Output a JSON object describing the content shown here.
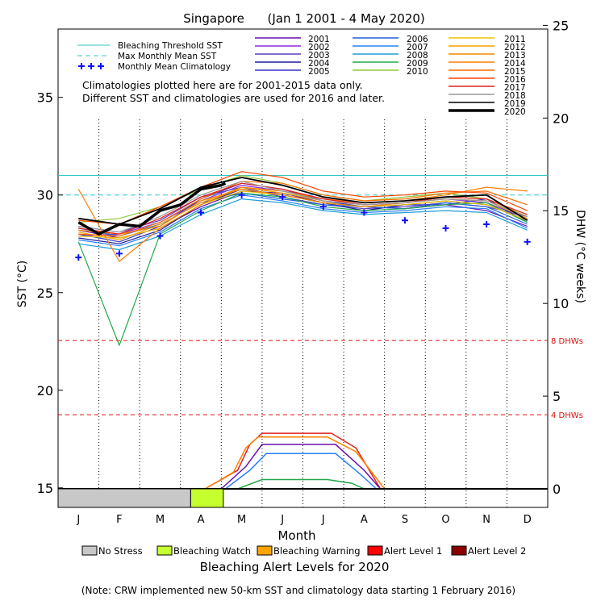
{
  "chart_data": {
    "type": "line",
    "title": "Singapore      (Jan 1 2001 - 4 May 2020)",
    "xlabel": "Month",
    "ylabel_left": "SST (°C)",
    "ylabel_right": "DHW (°C weeks)",
    "ylim_left": [
      14,
      38.5
    ],
    "ylim_right": [
      -1.0,
      24.8
    ],
    "yticks_left": [
      "15",
      "20",
      "25",
      "30",
      "35"
    ],
    "yticks_right": [
      "0",
      "5",
      "10",
      "15",
      "20",
      "25"
    ],
    "months": [
      "J",
      "F",
      "M",
      "A",
      "M",
      "J",
      "J",
      "A",
      "S",
      "O",
      "N",
      "D"
    ],
    "bleaching_threshold_sst": 31.0,
    "max_monthly_mean_sst": 30.0,
    "dhw_threshold_lines": [
      {
        "value": 8,
        "label": "8 DHWs"
      },
      {
        "value": 4,
        "label": "4 DHWs"
      }
    ],
    "monthly_mean_climatology": [
      {
        "month": 1,
        "sst": 26.8
      },
      {
        "month": 2,
        "sst": 27.0
      },
      {
        "month": 3,
        "sst": 27.9
      },
      {
        "month": 4,
        "sst": 29.1
      },
      {
        "month": 5,
        "sst": 30.0
      },
      {
        "month": 6,
        "sst": 29.9
      },
      {
        "month": 7,
        "sst": 29.4
      },
      {
        "month": 8,
        "sst": 29.1
      },
      {
        "month": 9,
        "sst": 28.7
      },
      {
        "month": 10,
        "sst": 28.3
      },
      {
        "month": 11,
        "sst": 28.5
      },
      {
        "month": 12,
        "sst": 27.6
      }
    ],
    "series": [
      {
        "name": "2001",
        "color": "#6a0dad",
        "month": [
          1,
          2,
          3,
          4,
          5,
          6,
          7,
          8,
          9,
          10,
          11,
          12
        ],
        "sst": [
          28.2,
          27.8,
          28.3,
          29.4,
          30.2,
          30.1,
          29.6,
          29.4,
          29.3,
          29.5,
          29.2,
          28.4
        ]
      },
      {
        "name": "2002",
        "color": "#8a2be2",
        "month": [
          1,
          2,
          3,
          4,
          5,
          6,
          7,
          8,
          9,
          10,
          11,
          12
        ],
        "sst": [
          27.9,
          28.0,
          28.6,
          29.7,
          30.5,
          30.2,
          29.8,
          29.5,
          29.6,
          29.8,
          29.6,
          28.8
        ]
      },
      {
        "name": "2003",
        "color": "#5b3fbf",
        "month": [
          1,
          2,
          3,
          4,
          5,
          6,
          7,
          8,
          9,
          10,
          11,
          12
        ],
        "sst": [
          28.4,
          28.1,
          28.7,
          29.9,
          30.4,
          29.9,
          29.5,
          29.3,
          29.4,
          29.6,
          29.4,
          28.9
        ]
      },
      {
        "name": "2004",
        "color": "#1c1c9e",
        "month": [
          1,
          2,
          3,
          4,
          5,
          6,
          7,
          8,
          9,
          10,
          11,
          12
        ],
        "sst": [
          27.8,
          27.5,
          28.2,
          29.5,
          30.3,
          30.0,
          29.6,
          29.2,
          29.5,
          29.7,
          29.5,
          28.7
        ]
      },
      {
        "name": "2005",
        "color": "#3333cc",
        "month": [
          1,
          2,
          3,
          4,
          5,
          6,
          7,
          8,
          9,
          10,
          11,
          12
        ],
        "sst": [
          28.0,
          27.6,
          28.4,
          29.8,
          30.6,
          30.3,
          29.7,
          29.4,
          29.5,
          29.5,
          29.8,
          28.6
        ]
      },
      {
        "name": "2006",
        "color": "#1f5fd6",
        "month": [
          1,
          2,
          3,
          4,
          5,
          6,
          7,
          8,
          9,
          10,
          11,
          12
        ],
        "sst": [
          28.3,
          27.9,
          28.5,
          29.6,
          30.1,
          29.8,
          29.5,
          29.4,
          29.3,
          29.6,
          29.4,
          28.5
        ]
      },
      {
        "name": "2007",
        "color": "#2a7fff",
        "month": [
          1,
          2,
          3,
          4,
          5,
          6,
          7,
          8,
          9,
          10,
          11,
          12
        ],
        "sst": [
          27.7,
          27.4,
          28.1,
          29.3,
          30.0,
          29.7,
          29.3,
          29.1,
          29.2,
          29.4,
          29.3,
          28.3
        ]
      },
      {
        "name": "2008",
        "color": "#1e9ed6",
        "month": [
          1,
          2,
          3,
          4,
          5,
          6,
          7,
          8,
          9,
          10,
          11,
          12
        ],
        "sst": [
          27.5,
          27.2,
          27.9,
          29.0,
          29.8,
          29.6,
          29.2,
          29.0,
          29.1,
          29.2,
          29.1,
          28.2
        ]
      },
      {
        "name": "2009",
        "color": "#22a84a",
        "month": [
          1,
          2,
          3,
          4,
          5,
          6,
          7,
          8,
          9,
          10,
          11,
          12
        ],
        "sst": [
          27.6,
          22.3,
          28.0,
          29.2,
          30.1,
          29.9,
          29.4,
          29.2,
          29.3,
          29.5,
          29.6,
          28.6
        ]
      },
      {
        "name": "2010",
        "color": "#8fc93a",
        "month": [
          1,
          2,
          3,
          4,
          5,
          6,
          7,
          8,
          9,
          10,
          11,
          12
        ],
        "sst": [
          28.6,
          28.8,
          29.4,
          30.3,
          31.0,
          30.6,
          30.0,
          29.7,
          29.9,
          30.1,
          29.8,
          29.0
        ]
      },
      {
        "name": "2011",
        "color": "#f2c200",
        "month": [
          1,
          2,
          3,
          4,
          5,
          6,
          7,
          8,
          9,
          10,
          11,
          12
        ],
        "sst": [
          27.9,
          27.8,
          28.3,
          29.5,
          30.2,
          30.0,
          29.6,
          29.4,
          29.5,
          29.7,
          29.5,
          28.7
        ]
      },
      {
        "name": "2012",
        "color": "#f2a200",
        "month": [
          1,
          2,
          3,
          4,
          5,
          6,
          7,
          8,
          9,
          10,
          11,
          12
        ],
        "sst": [
          28.1,
          27.7,
          28.5,
          29.6,
          30.4,
          30.1,
          29.7,
          29.5,
          29.6,
          29.8,
          29.7,
          28.8
        ]
      },
      {
        "name": "2013",
        "color": "#f08a00",
        "month": [
          1,
          2,
          3,
          4,
          5,
          6,
          7,
          8,
          9,
          10,
          11,
          12
        ],
        "sst": [
          28.2,
          28.0,
          28.4,
          29.7,
          30.3,
          30.0,
          29.6,
          29.4,
          29.6,
          29.9,
          29.8,
          28.9
        ]
      },
      {
        "name": "2014",
        "color": "#ff7f00",
        "month": [
          1,
          2,
          3,
          4,
          5,
          6,
          7,
          8,
          9,
          10,
          11,
          12
        ],
        "sst": [
          30.3,
          26.6,
          28.3,
          29.5,
          30.4,
          30.2,
          29.8,
          29.6,
          29.7,
          30.0,
          30.4,
          30.2
        ]
      },
      {
        "name": "2015",
        "color": "#ff6a00",
        "month": [
          1,
          2,
          3,
          4,
          5,
          6,
          7,
          8,
          9,
          10,
          11,
          12
        ],
        "sst": [
          28.0,
          27.9,
          28.6,
          29.8,
          30.7,
          30.6,
          30.0,
          29.7,
          29.8,
          30.1,
          30.2,
          29.5
        ]
      },
      {
        "name": "2016",
        "color": "#ff4500",
        "month": [
          1,
          2,
          3,
          4,
          5,
          6,
          7,
          8,
          9,
          10,
          11,
          12
        ],
        "sst": [
          28.7,
          28.5,
          29.4,
          30.4,
          31.2,
          30.9,
          30.2,
          29.9,
          30.0,
          30.2,
          30.1,
          29.2
        ]
      },
      {
        "name": "2017",
        "color": "#e02020",
        "month": [
          1,
          2,
          3,
          4,
          5,
          6,
          7,
          8,
          9,
          10,
          11,
          12
        ],
        "sst": [
          28.3,
          28.0,
          28.8,
          29.9,
          30.6,
          30.3,
          29.8,
          29.5,
          29.6,
          29.9,
          29.8,
          29.0
        ]
      },
      {
        "name": "2018",
        "color": "#999999",
        "month": [
          1,
          2,
          3,
          4,
          5,
          6,
          7,
          8,
          9,
          10,
          11,
          12
        ],
        "sst": [
          28.4,
          28.1,
          28.9,
          30.0,
          30.7,
          30.2,
          29.7,
          29.5,
          29.6,
          29.8,
          29.7,
          28.9
        ]
      },
      {
        "name": "2019",
        "color": "#000000",
        "month": [
          1,
          2,
          3,
          4,
          5,
          6,
          7,
          8,
          9,
          10,
          11,
          12
        ],
        "sst": [
          28.8,
          28.5,
          29.3,
          30.4,
          30.9,
          30.5,
          29.9,
          29.6,
          29.7,
          29.9,
          30.0,
          28.7
        ]
      },
      {
        "name": "2020",
        "color": "#000000",
        "month": [
          1,
          1.5,
          2,
          2.5,
          3,
          3.5,
          4,
          4.5,
          4.6
        ],
        "sst": [
          28.6,
          28.0,
          28.5,
          28.4,
          29.2,
          29.5,
          30.3,
          30.5,
          30.6
        ]
      }
    ],
    "dhw_series": [
      {
        "color": "#e02020",
        "month": [
          4.1,
          4.9,
          5.2,
          5.5,
          7.2,
          7.8,
          8.4
        ],
        "dhw": [
          0,
          1.0,
          2.4,
          3.0,
          3.0,
          2.2,
          0
        ]
      },
      {
        "color": "#ff7f00",
        "month": [
          4.1,
          4.8,
          5.1,
          5.4,
          7.1,
          7.8,
          8.5
        ],
        "dhw": [
          0,
          0.9,
          2.2,
          2.8,
          2.8,
          2.0,
          0
        ]
      },
      {
        "color": "#6a0dad",
        "month": [
          4.5,
          5.1,
          5.5,
          7.3,
          8.0,
          8.4
        ],
        "dhw": [
          0,
          1.2,
          2.4,
          2.4,
          1.0,
          0
        ]
      },
      {
        "color": "#2a7fff",
        "month": [
          4.6,
          5.2,
          5.6,
          7.3,
          7.9,
          8.3
        ],
        "dhw": [
          0,
          1.0,
          1.9,
          1.9,
          0.8,
          0
        ]
      },
      {
        "color": "#22a84a",
        "month": [
          4.9,
          5.5,
          7.1,
          7.7,
          8.0
        ],
        "dhw": [
          0,
          0.5,
          0.5,
          0.3,
          0
        ]
      }
    ],
    "alert_levels_2020": [
      {
        "level": "No Stress",
        "from_month": 0.5,
        "to_month": 3.75
      },
      {
        "level": "Bleaching Watch",
        "from_month": 3.75,
        "to_month": 4.55
      }
    ],
    "note_lines": [
      "Climatologies plotted here are for 2001-2015 data only.",
      "Different SST and climatologies are used for 2016 and later."
    ],
    "legend_labels": {
      "threshold": "Bleaching Threshold SST",
      "mmm": "Max Monthly Mean SST",
      "climatology": "Monthly Mean Climatology"
    },
    "alert_legend": [
      {
        "label": "No Stress",
        "color": "#c8c8c8"
      },
      {
        "label": "Bleaching Watch",
        "color": "#c6ff2e"
      },
      {
        "label": "Bleaching Warning",
        "color": "#ffa500"
      },
      {
        "label": "Alert Level 1",
        "color": "#ff0000"
      },
      {
        "label": "Alert Level 2",
        "color": "#8b0000"
      }
    ],
    "alert_title": "Bleaching Alert Levels for 2020",
    "footnote": "(Note: CRW implemented new 50-km SST and climatology data starting 1 February 2016)"
  }
}
